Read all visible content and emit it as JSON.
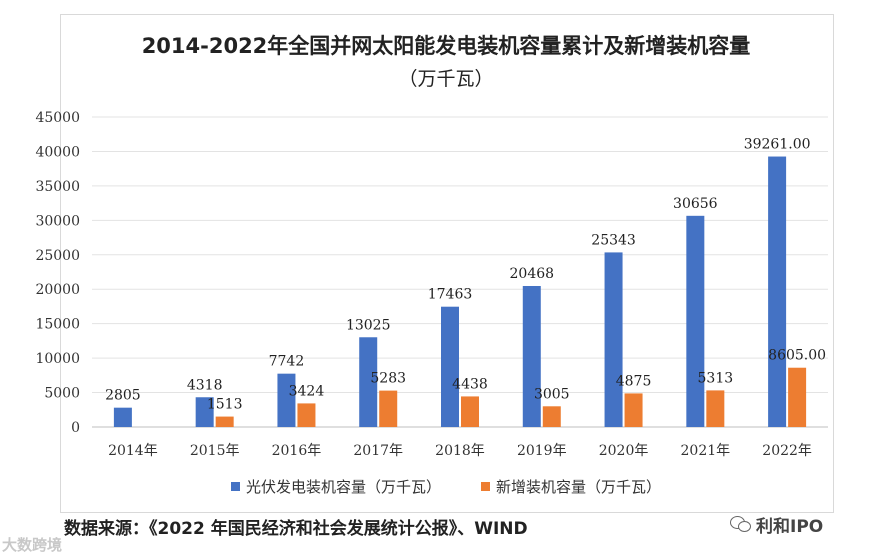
{
  "chart_data": {
    "type": "bar",
    "title": "2014-2022年全国并网太阳能发电装机容量累计及新增装机容量",
    "subtitle": "（万千瓦）",
    "categories": [
      "2014年",
      "2015年",
      "2016年",
      "2017年",
      "2018年",
      "2019年",
      "2020年",
      "2021年",
      "2022年"
    ],
    "series": [
      {
        "name": "光伏发电装机容量（万千瓦）",
        "color": "#4472C4",
        "values": [
          2805,
          4318,
          7742,
          13025,
          17463,
          20468,
          25343,
          30656,
          39261.0
        ],
        "labels": [
          "2805",
          "4318",
          "7742",
          "13025",
          "17463",
          "20468",
          "25343",
          "30656",
          "39261.00"
        ]
      },
      {
        "name": "新增装机容量（万千瓦）",
        "color": "#ED7D31",
        "values": [
          null,
          1513,
          3424,
          5283,
          4438,
          3005,
          4875,
          5313,
          8605.0
        ],
        "labels": [
          "",
          "1513",
          "3424",
          "5283",
          "4438",
          "3005",
          "4875",
          "5313",
          "8605.00"
        ]
      }
    ],
    "yticks": [
      "0",
      "5000",
      "10000",
      "15000",
      "20000",
      "25000",
      "30000",
      "35000",
      "40000",
      "45000"
    ],
    "ylim": [
      0,
      45000
    ],
    "grid": true,
    "legend": "bottom"
  },
  "source": "数据来源：《2022 年国民经济和社会发展统计公报》、WIND",
  "watermark_left": "大数跨境",
  "watermark_right": "利和IPO"
}
